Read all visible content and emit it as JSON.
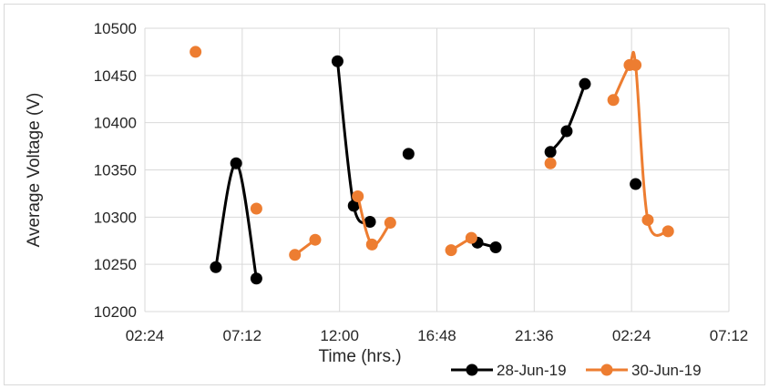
{
  "chart_data": {
    "type": "line",
    "title": "",
    "xlabel": "Time (hrs.)",
    "ylabel": "Average Voltage (V)",
    "x_unit": "time of day (hours, continuing past midnight)",
    "xlim": [
      2.4,
      31.2
    ],
    "ylim": [
      10200,
      10500
    ],
    "x_tick_labels": [
      "02:24",
      "07:12",
      "12:00",
      "16:48",
      "21:36",
      "02:24",
      "07:12"
    ],
    "y_tick_labels": [
      "10200",
      "10250",
      "10300",
      "10350",
      "10400",
      "10450",
      "10500"
    ],
    "grid": true,
    "legend_position": "bottom-right",
    "series": [
      {
        "name": "28-Jun-19",
        "color": "#000000",
        "segments": [
          [
            [
              5.9,
              10247
            ],
            [
              6.9,
              10357
            ],
            [
              7.9,
              10235
            ]
          ],
          [
            [
              11.9,
              10465
            ],
            [
              12.7,
              10312
            ],
            [
              13.5,
              10295
            ]
          ],
          [
            [
              18.8,
              10273
            ],
            [
              19.7,
              10268
            ]
          ],
          [
            [
              22.4,
              10369
            ],
            [
              23.2,
              10391
            ],
            [
              24.1,
              10441
            ]
          ]
        ],
        "isolated_points": [
          [
            15.4,
            10367
          ],
          [
            26.6,
            10335
          ]
        ]
      },
      {
        "name": "30-Jun-19",
        "color": "#ED7D31",
        "segments": [
          [
            [
              9.8,
              10260
            ],
            [
              10.8,
              10276
            ]
          ],
          [
            [
              12.9,
              10322
            ],
            [
              13.6,
              10271
            ],
            [
              14.5,
              10294
            ]
          ],
          [
            [
              17.5,
              10265
            ],
            [
              18.5,
              10278
            ]
          ],
          [
            [
              25.5,
              10424
            ],
            [
              26.3,
              10461
            ],
            [
              26.6,
              10461
            ],
            [
              27.2,
              10297
            ],
            [
              28.2,
              10285
            ]
          ]
        ],
        "isolated_points": [
          [
            4.9,
            10475
          ],
          [
            7.9,
            10309
          ],
          [
            22.4,
            10357
          ]
        ]
      }
    ]
  }
}
